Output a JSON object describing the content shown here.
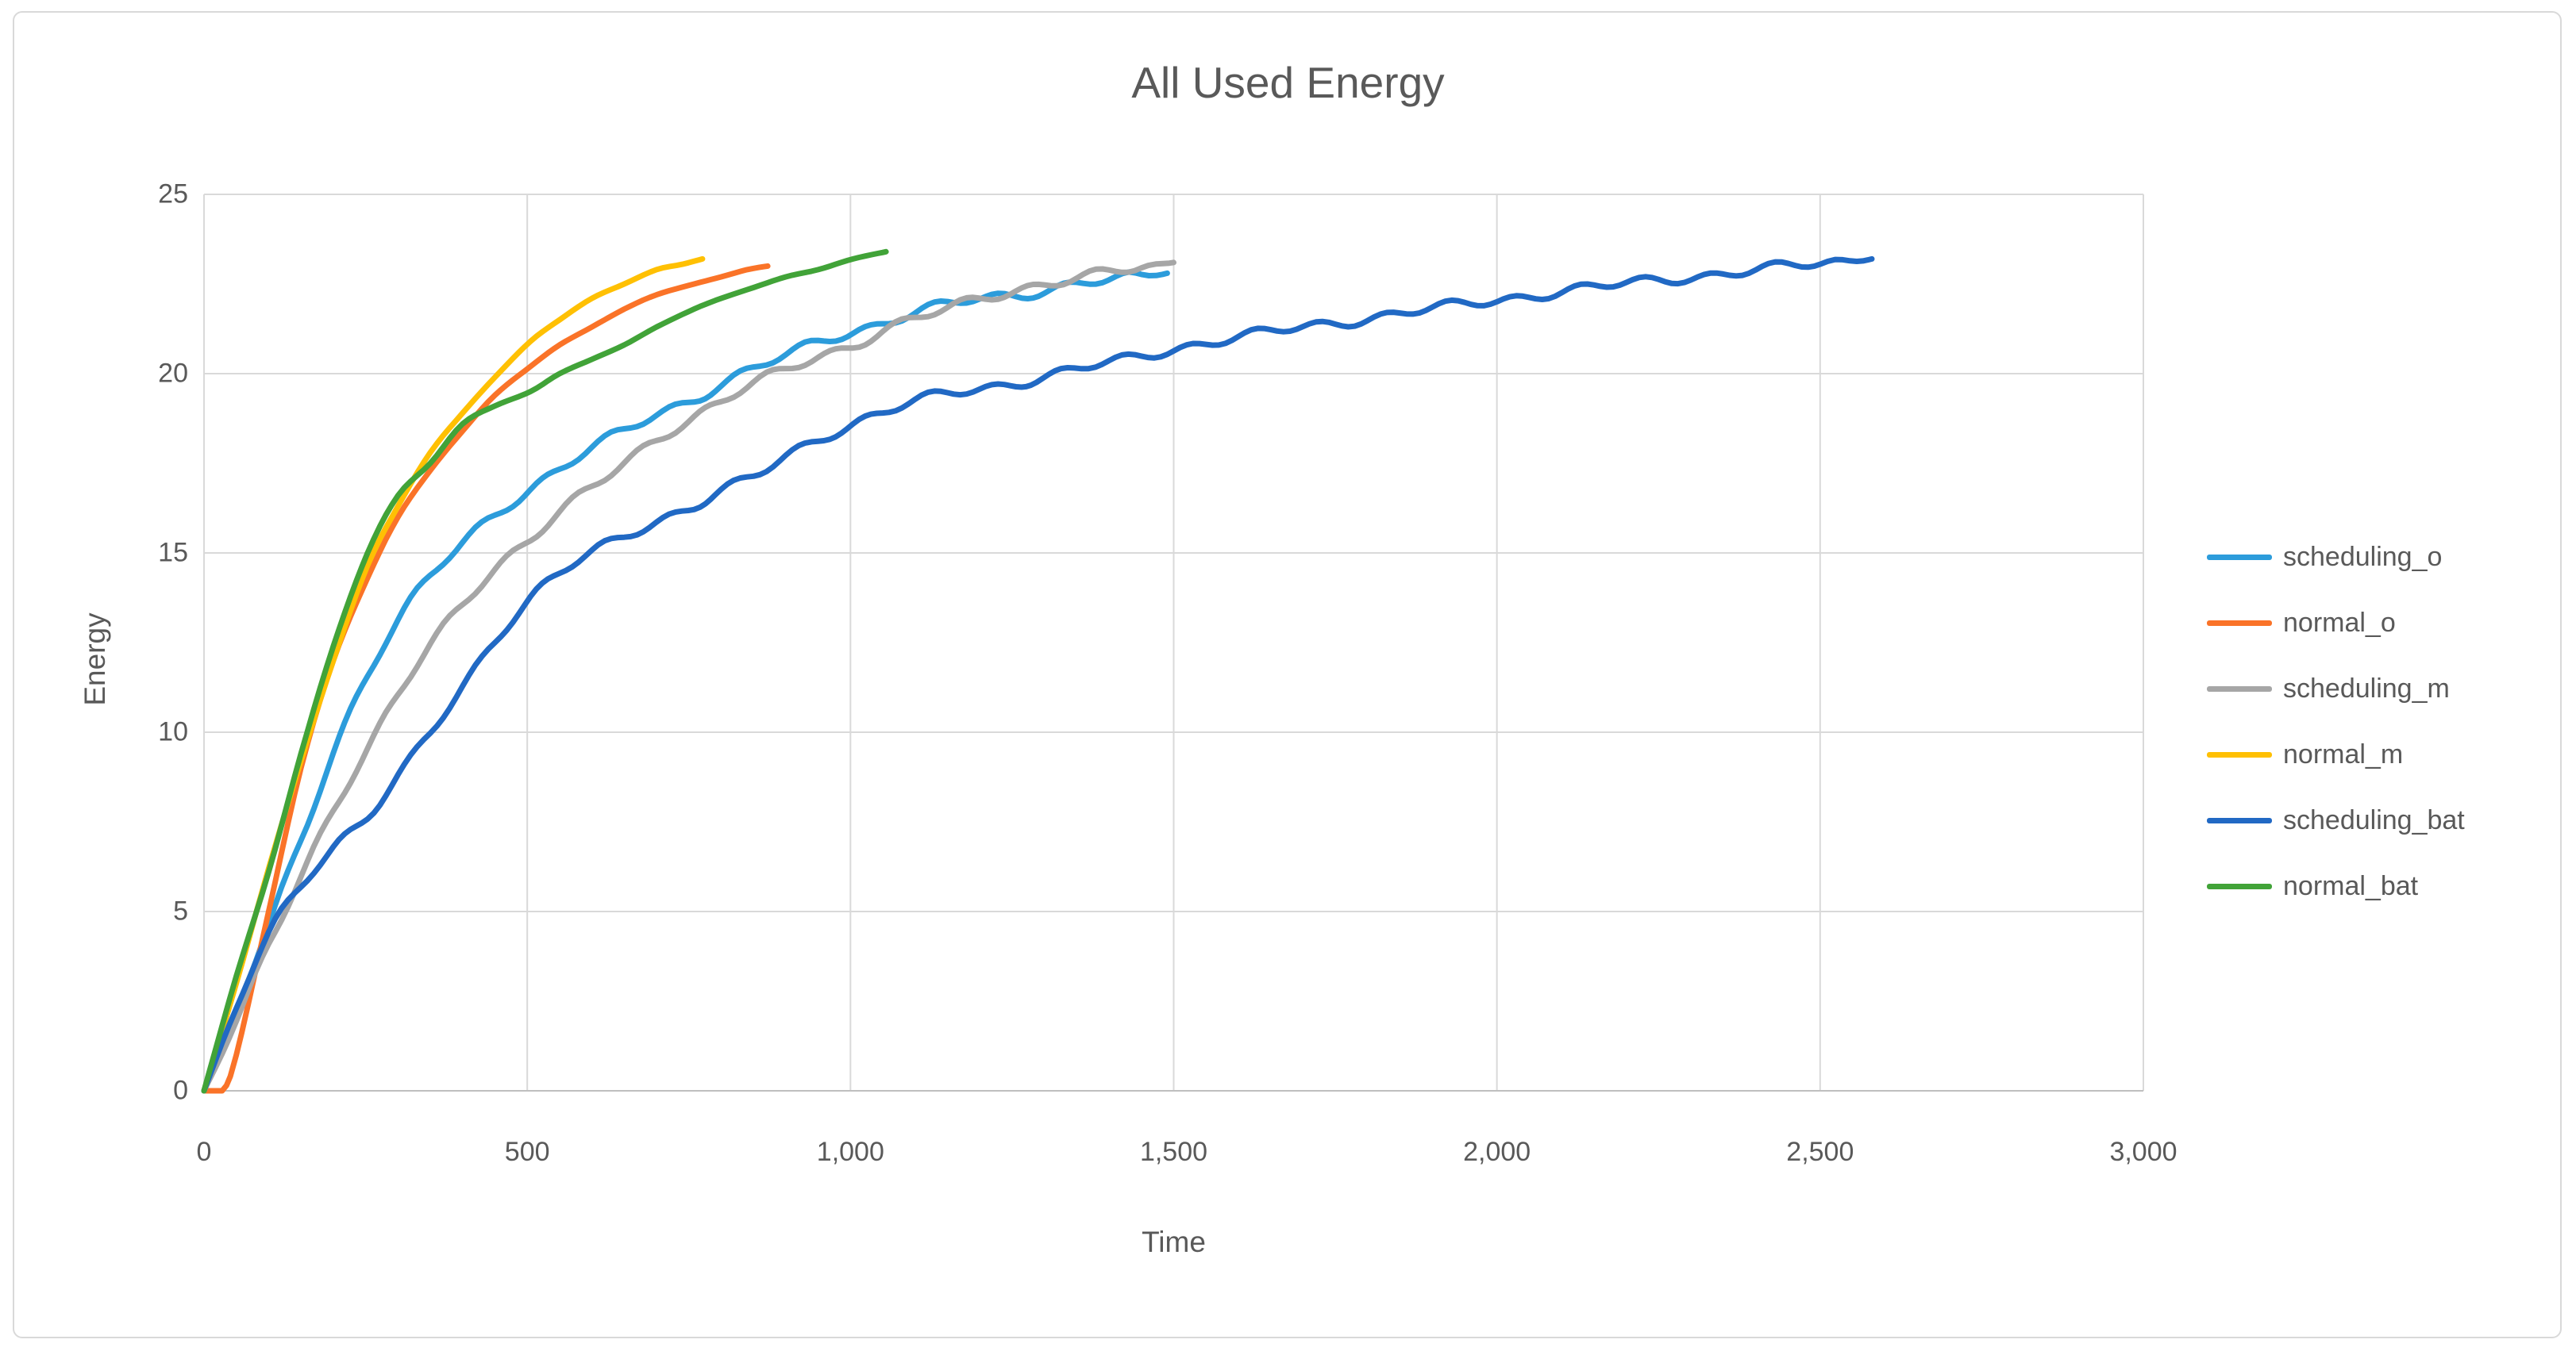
{
  "title": "All Used Energy",
  "axes": {
    "x": {
      "label": "Time",
      "min": 0,
      "max": 3000,
      "step": 500,
      "ticks": [
        "0",
        "500",
        "1,000",
        "1,500",
        "2,000",
        "2,500",
        "3,000"
      ]
    },
    "y": {
      "label": "Energy",
      "min": 0,
      "max": 25,
      "step": 5,
      "ticks": [
        "0",
        "5",
        "10",
        "15",
        "20",
        "25"
      ]
    }
  },
  "colors": {
    "title_text": "#595959",
    "tick_text": "#595959",
    "gridline": "#d9d9d9",
    "axis_line": "#bfbfbf",
    "card_border": "#d9d9d9"
  },
  "legend": {
    "position": "right",
    "items": [
      {
        "label": "scheduling_o",
        "color": "#2c9cdb"
      },
      {
        "label": "normal_o",
        "color": "#fa7328"
      },
      {
        "label": "scheduling_m",
        "color": "#a6a6a6"
      },
      {
        "label": "normal_m",
        "color": "#ffc003"
      },
      {
        "label": "scheduling_bat",
        "color": "#2169c4"
      },
      {
        "label": "normal_bat",
        "color": "#41a338"
      }
    ]
  },
  "chart_data": {
    "type": "line",
    "title": "All Used Energy",
    "xlabel": "Time",
    "ylabel": "Energy",
    "xlim": [
      0,
      3000
    ],
    "ylim": [
      0,
      25
    ],
    "grid": true,
    "legend_position": "right",
    "series": [
      {
        "name": "scheduling_o",
        "color": "#2c9cdb",
        "noisy": true,
        "points": [
          [
            0,
            0
          ],
          [
            50,
            2.2
          ],
          [
            100,
            4.6
          ],
          [
            150,
            7.0
          ],
          [
            200,
            9.5
          ],
          [
            253,
            11.6
          ],
          [
            300,
            13.1
          ],
          [
            350,
            14.3
          ],
          [
            400,
            15.3
          ],
          [
            450,
            16.1
          ],
          [
            505,
            16.8
          ],
          [
            550,
            17.3
          ],
          [
            600,
            17.9
          ],
          [
            650,
            18.4
          ],
          [
            700,
            18.9
          ],
          [
            758,
            19.3
          ],
          [
            800,
            19.7
          ],
          [
            850,
            20.1
          ],
          [
            900,
            20.5
          ],
          [
            950,
            20.9
          ],
          [
            1004,
            21.2
          ],
          [
            1050,
            21.4
          ],
          [
            1100,
            21.7
          ],
          [
            1150,
            21.9
          ],
          [
            1200,
            22.1
          ],
          [
            1256,
            22.2
          ],
          [
            1300,
            22.35
          ],
          [
            1350,
            22.5
          ],
          [
            1400,
            22.6
          ],
          [
            1450,
            22.7
          ],
          [
            1490,
            22.8
          ]
        ]
      },
      {
        "name": "normal_o",
        "color": "#fa7328",
        "noisy": false,
        "points": [
          [
            0,
            0
          ],
          [
            28,
            0
          ],
          [
            50,
            1.0
          ],
          [
            100,
            5.0
          ],
          [
            150,
            9.0
          ],
          [
            200,
            12.0
          ],
          [
            253,
            14.3
          ],
          [
            300,
            16.0
          ],
          [
            350,
            17.3
          ],
          [
            400,
            18.4
          ],
          [
            450,
            19.4
          ],
          [
            505,
            20.2
          ],
          [
            550,
            20.8
          ],
          [
            600,
            21.3
          ],
          [
            650,
            21.8
          ],
          [
            700,
            22.2
          ],
          [
            758,
            22.5
          ],
          [
            800,
            22.7
          ],
          [
            840,
            22.9
          ],
          [
            872,
            23.0
          ]
        ]
      },
      {
        "name": "scheduling_m",
        "color": "#a6a6a6",
        "noisy": true,
        "points": [
          [
            0,
            0
          ],
          [
            50,
            1.9
          ],
          [
            100,
            4.1
          ],
          [
            150,
            6.0
          ],
          [
            200,
            7.9
          ],
          [
            253,
            9.5
          ],
          [
            300,
            11.0
          ],
          [
            350,
            12.4
          ],
          [
            400,
            13.6
          ],
          [
            450,
            14.6
          ],
          [
            505,
            15.4
          ],
          [
            550,
            16.1
          ],
          [
            600,
            16.8
          ],
          [
            650,
            17.5
          ],
          [
            700,
            18.2
          ],
          [
            758,
            18.8
          ],
          [
            800,
            19.2
          ],
          [
            850,
            19.7
          ],
          [
            900,
            20.1
          ],
          [
            950,
            20.5
          ],
          [
            1004,
            20.8
          ],
          [
            1050,
            21.2
          ],
          [
            1100,
            21.5
          ],
          [
            1150,
            21.8
          ],
          [
            1200,
            22.1
          ],
          [
            1256,
            22.35
          ],
          [
            1300,
            22.5
          ],
          [
            1350,
            22.65
          ],
          [
            1400,
            22.8
          ],
          [
            1450,
            22.95
          ],
          [
            1500,
            23.1
          ]
        ]
      },
      {
        "name": "normal_m",
        "color": "#ffc003",
        "noisy": false,
        "points": [
          [
            0,
            0
          ],
          [
            50,
            3.0
          ],
          [
            100,
            6.2
          ],
          [
            150,
            9.2
          ],
          [
            200,
            12.0
          ],
          [
            253,
            14.65
          ],
          [
            300,
            16.3
          ],
          [
            350,
            17.8
          ],
          [
            400,
            18.9
          ],
          [
            450,
            19.9
          ],
          [
            505,
            20.9
          ],
          [
            550,
            21.5
          ],
          [
            600,
            22.1
          ],
          [
            650,
            22.5
          ],
          [
            700,
            22.9
          ],
          [
            740,
            23.05
          ],
          [
            771,
            23.2
          ]
        ]
      },
      {
        "name": "scheduling_bat",
        "color": "#2169c4",
        "noisy": true,
        "points": [
          [
            0,
            0
          ],
          [
            50,
            2.3
          ],
          [
            100,
            4.4
          ],
          [
            150,
            5.8
          ],
          [
            200,
            6.8
          ],
          [
            253,
            7.6
          ],
          [
            300,
            8.7
          ],
          [
            350,
            10.0
          ],
          [
            400,
            11.3
          ],
          [
            450,
            12.6
          ],
          [
            505,
            13.7
          ],
          [
            550,
            14.4
          ],
          [
            600,
            15.0
          ],
          [
            650,
            15.5
          ],
          [
            700,
            15.9
          ],
          [
            758,
            16.3
          ],
          [
            800,
            16.7
          ],
          [
            850,
            17.1
          ],
          [
            900,
            17.7
          ],
          [
            950,
            18.2
          ],
          [
            1004,
            18.6
          ],
          [
            1050,
            18.9
          ],
          [
            1100,
            19.2
          ],
          [
            1150,
            19.45
          ],
          [
            1200,
            19.6
          ],
          [
            1256,
            19.75
          ],
          [
            1300,
            19.9
          ],
          [
            1400,
            20.3
          ],
          [
            1500,
            20.7
          ],
          [
            1600,
            21.0
          ],
          [
            1700,
            21.3
          ],
          [
            1800,
            21.55
          ],
          [
            1900,
            21.8
          ],
          [
            2000,
            22.05
          ],
          [
            2100,
            22.3
          ],
          [
            2200,
            22.5
          ],
          [
            2300,
            22.7
          ],
          [
            2400,
            22.9
          ],
          [
            2500,
            23.05
          ],
          [
            2580,
            23.2
          ]
        ]
      },
      {
        "name": "normal_bat",
        "color": "#41a338",
        "noisy": false,
        "points": [
          [
            0,
            0
          ],
          [
            50,
            3.2
          ],
          [
            100,
            6.1
          ],
          [
            150,
            9.4
          ],
          [
            200,
            12.4
          ],
          [
            253,
            15.0
          ],
          [
            300,
            16.6
          ],
          [
            350,
            17.5
          ],
          [
            400,
            18.6
          ],
          [
            450,
            19.1
          ],
          [
            505,
            19.5
          ],
          [
            550,
            20.0
          ],
          [
            600,
            20.4
          ],
          [
            650,
            20.8
          ],
          [
            700,
            21.3
          ],
          [
            758,
            21.8
          ],
          [
            800,
            22.1
          ],
          [
            850,
            22.4
          ],
          [
            900,
            22.7
          ],
          [
            950,
            22.9
          ],
          [
            1004,
            23.2
          ],
          [
            1055,
            23.4
          ]
        ]
      }
    ]
  }
}
